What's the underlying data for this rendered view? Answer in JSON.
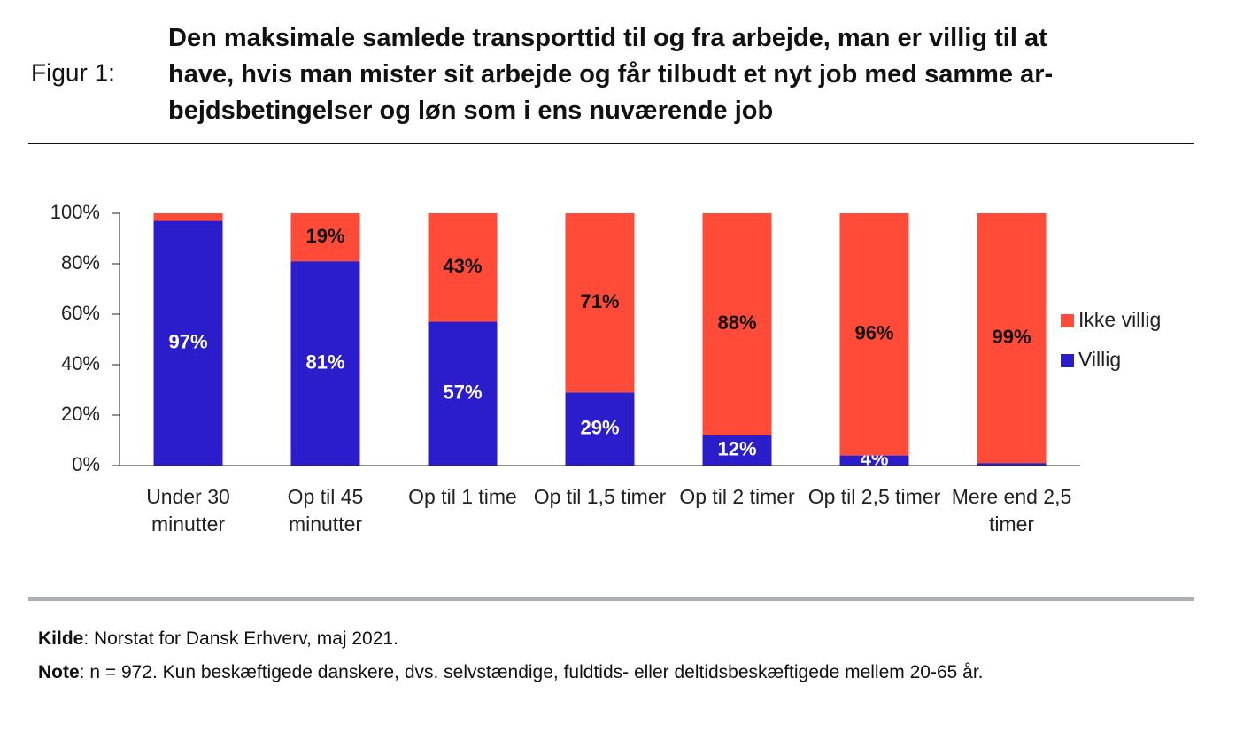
{
  "figure_label": "Figur 1:",
  "chart_data": {
    "type": "stacked_bar",
    "title_lines": [
      "Den maksimale samlede transporttid til og fra arbejde, man er villig til at",
      "have, hvis man mister sit arbejde og får tilbudt et nyt job med samme ar-",
      "bejdsbetingelser og løn som i ens nuværende job"
    ],
    "categories": [
      "Under 30 minutter",
      "Op til 45 minutter",
      "Op til 1 time",
      "Op til 1,5 timer",
      "Op til 2 timer",
      "Op til 2,5 timer",
      "Mere end 2,5 timer"
    ],
    "series": [
      {
        "name": "Villig",
        "color": "#2b1dcb",
        "values": [
          97,
          81,
          57,
          29,
          12,
          4,
          1
        ],
        "value_labels": [
          "97%",
          "81%",
          "57%",
          "29%",
          "12%",
          "4%",
          null
        ]
      },
      {
        "name": "Ikke villig",
        "color": "#ff4b38",
        "values": [
          3,
          19,
          43,
          71,
          88,
          96,
          99
        ],
        "value_labels": [
          null,
          "19%",
          "43%",
          "71%",
          "88%",
          "96%",
          "99%"
        ]
      }
    ],
    "ylim": [
      0,
      100
    ],
    "yticks": [
      {
        "value": 0,
        "label": "0%"
      },
      {
        "value": 20,
        "label": "20%"
      },
      {
        "value": 40,
        "label": "40%"
      },
      {
        "value": 60,
        "label": "60%"
      },
      {
        "value": 80,
        "label": "80%"
      },
      {
        "value": 100,
        "label": "100%"
      }
    ],
    "legend_position": "right"
  },
  "footer": {
    "source": {
      "label": "Kilde",
      "text": ": Norstat for Dansk Erhverv, maj 2021."
    },
    "note": {
      "label": "Note",
      "text": ": n = 972. Kun beskæftigede danskere, dvs. selvstændige, fuldtids- eller deltidsbeskæftigede mellem 20-65 år."
    }
  }
}
